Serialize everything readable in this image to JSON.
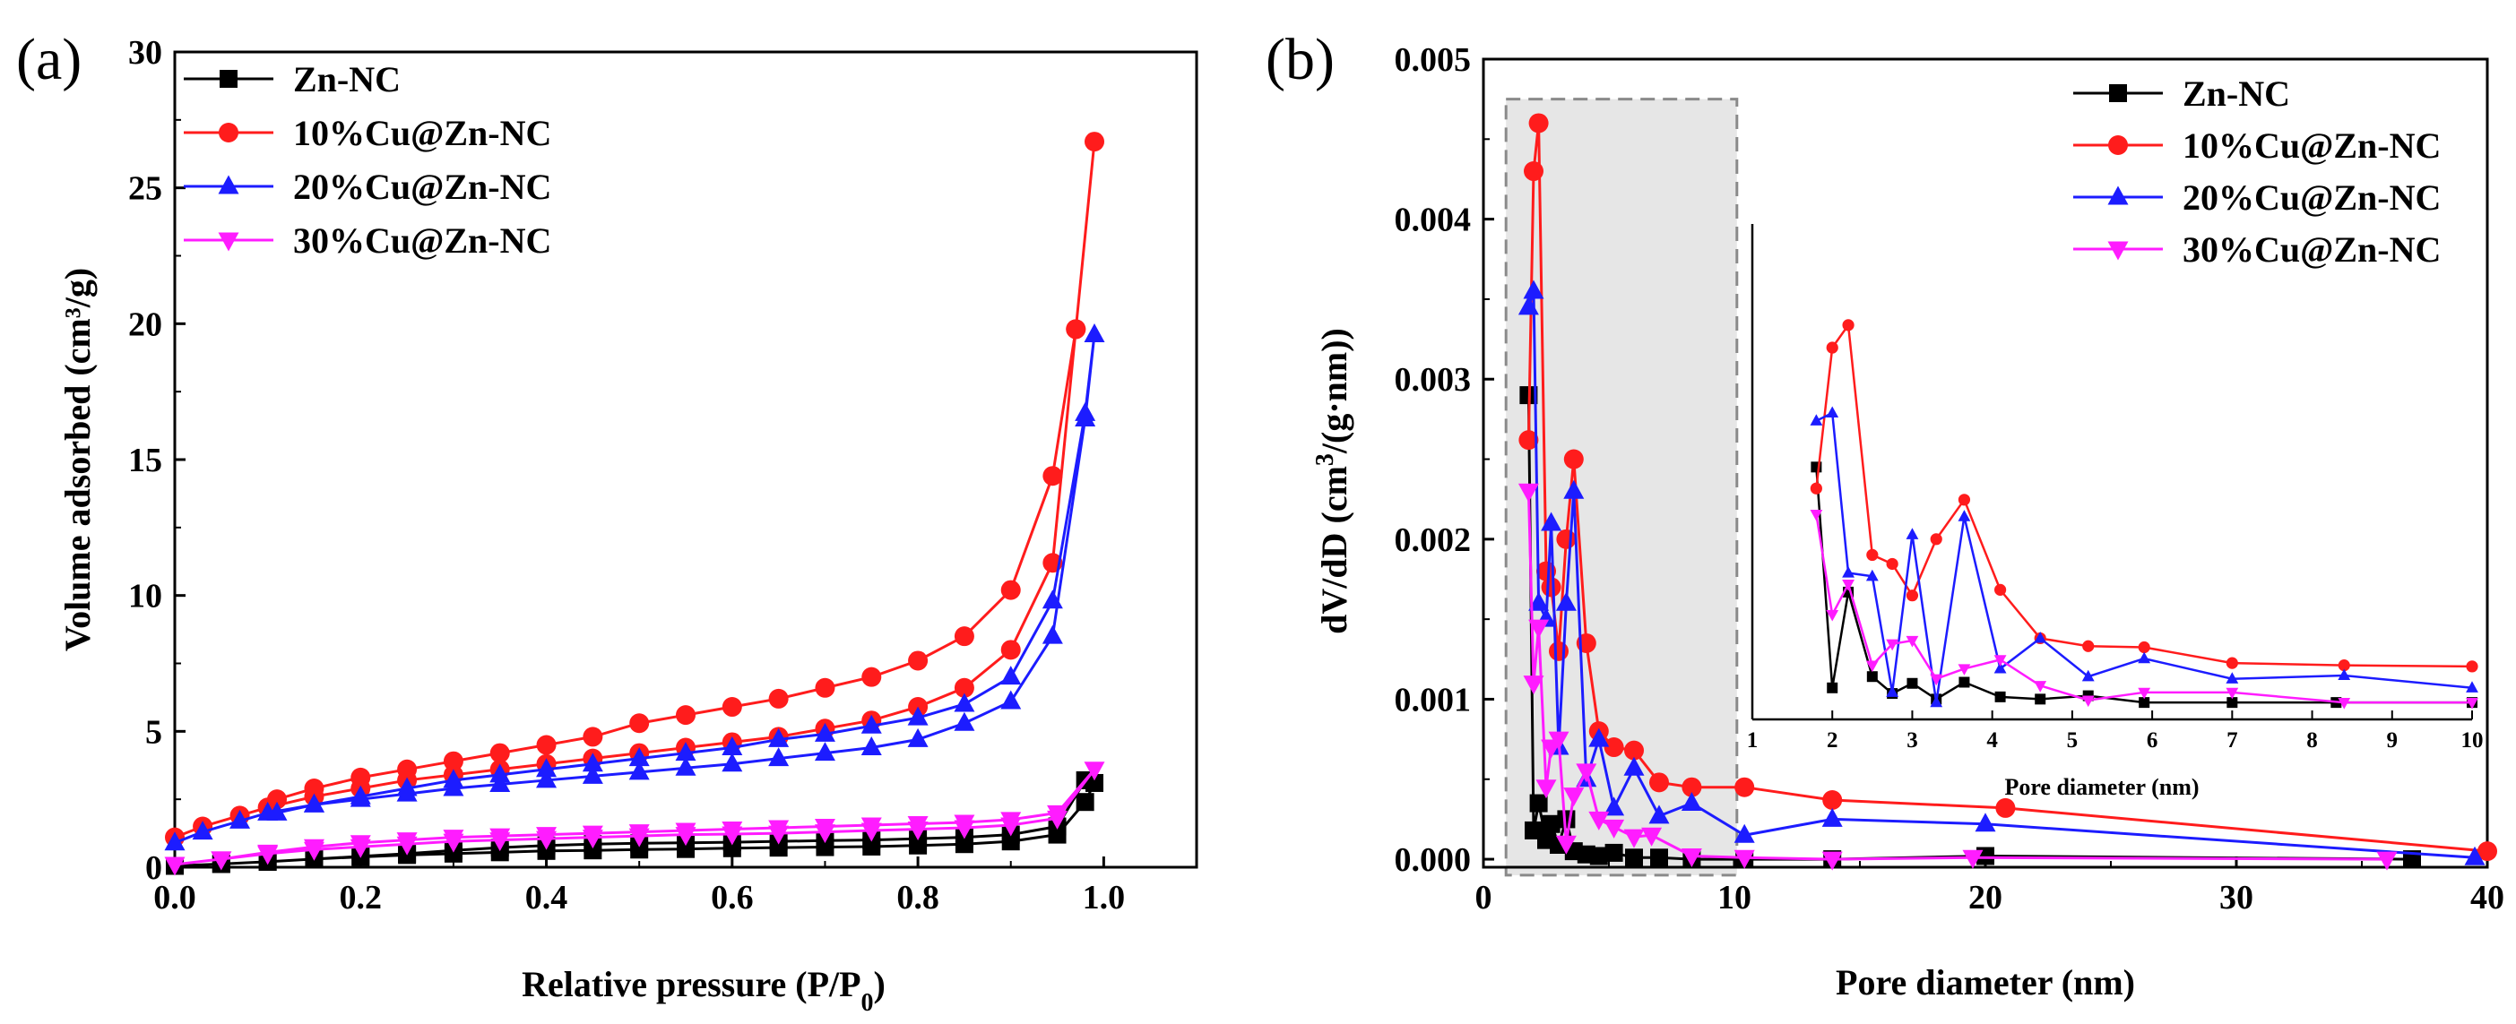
{
  "figure_labels": {
    "a": "(a)",
    "b": "(b)"
  },
  "chart_data": [
    {
      "id": "a",
      "type": "line",
      "title": "",
      "xlabel": "Relative pressure (P/P",
      "xlabel_sub": "0",
      "xlabel_end": ")",
      "ylabel": "Volume adsorbed (cm³/g)",
      "xlim": [
        0,
        1.1
      ],
      "ylim": [
        0,
        30
      ],
      "xticks": [
        0.0,
        0.2,
        0.4,
        0.6,
        0.8,
        1.0
      ],
      "xtick_labels": [
        "0.0",
        "0.2",
        "0.4",
        "0.6",
        "0.8",
        "1.0"
      ],
      "yticks": [
        0,
        5,
        10,
        15,
        20,
        25,
        30
      ],
      "ytick_labels": [
        "0",
        "5",
        "10",
        "15",
        "20",
        "25",
        "30"
      ],
      "legend": "top-left",
      "series": [
        {
          "name": "Zn-NC",
          "color": "#000000",
          "marker": "square",
          "x": [
            0.0,
            0.05,
            0.1,
            0.15,
            0.2,
            0.25,
            0.3,
            0.35,
            0.4,
            0.45,
            0.5,
            0.55,
            0.6,
            0.65,
            0.7,
            0.75,
            0.8,
            0.85,
            0.9,
            0.95,
            0.98,
            0.99,
            0.98,
            0.95,
            0.9,
            0.85,
            0.8,
            0.75,
            0.7,
            0.65,
            0.6,
            0.55,
            0.5,
            0.45,
            0.4,
            0.35,
            0.3,
            0.25,
            0.2,
            0.15,
            0.1,
            0.05
          ],
          "y": [
            0.05,
            0.12,
            0.2,
            0.3,
            0.38,
            0.45,
            0.5,
            0.55,
            0.6,
            0.62,
            0.65,
            0.67,
            0.7,
            0.72,
            0.74,
            0.76,
            0.8,
            0.85,
            0.95,
            1.2,
            2.4,
            3.1,
            3.2,
            1.5,
            1.2,
            1.1,
            1.05,
            1.0,
            0.98,
            0.95,
            0.92,
            0.9,
            0.88,
            0.85,
            0.8,
            0.72,
            0.62,
            0.5,
            0.4,
            0.3,
            0.2,
            0.12
          ]
        },
        {
          "name": "10%Cu@Zn-NC",
          "color": "#ff1c1c",
          "marker": "circle",
          "x": [
            0.0,
            0.03,
            0.07,
            0.1,
            0.15,
            0.2,
            0.25,
            0.3,
            0.35,
            0.4,
            0.45,
            0.5,
            0.55,
            0.6,
            0.65,
            0.7,
            0.75,
            0.8,
            0.85,
            0.9,
            0.945,
            0.97,
            0.99,
            0.97,
            0.945,
            0.9,
            0.85,
            0.8,
            0.75,
            0.7,
            0.65,
            0.6,
            0.55,
            0.5,
            0.45,
            0.4,
            0.35,
            0.3,
            0.25,
            0.2,
            0.15,
            0.11
          ],
          "y": [
            1.1,
            1.5,
            1.9,
            2.2,
            2.6,
            2.9,
            3.2,
            3.4,
            3.6,
            3.8,
            4.0,
            4.2,
            4.4,
            4.6,
            4.8,
            5.1,
            5.4,
            5.9,
            6.6,
            8.0,
            11.2,
            19.8,
            26.7,
            19.8,
            14.4,
            10.2,
            8.5,
            7.6,
            7.0,
            6.6,
            6.2,
            5.9,
            5.6,
            5.3,
            4.8,
            4.5,
            4.2,
            3.9,
            3.6,
            3.3,
            2.9,
            2.5
          ]
        },
        {
          "name": "20%Cu@Zn-NC",
          "color": "#1c1cff",
          "marker": "triangle-up",
          "x": [
            0.0,
            0.03,
            0.07,
            0.1,
            0.15,
            0.2,
            0.25,
            0.3,
            0.35,
            0.4,
            0.45,
            0.5,
            0.55,
            0.6,
            0.65,
            0.7,
            0.75,
            0.8,
            0.85,
            0.9,
            0.945,
            0.98,
            0.99,
            0.98,
            0.945,
            0.9,
            0.85,
            0.8,
            0.75,
            0.7,
            0.65,
            0.6,
            0.55,
            0.5,
            0.45,
            0.4,
            0.35,
            0.3,
            0.25,
            0.2,
            0.15,
            0.11
          ],
          "y": [
            0.9,
            1.3,
            1.7,
            2.0,
            2.3,
            2.5,
            2.7,
            2.9,
            3.05,
            3.2,
            3.35,
            3.5,
            3.65,
            3.8,
            4.0,
            4.2,
            4.4,
            4.7,
            5.3,
            6.1,
            8.5,
            16.5,
            19.6,
            16.7,
            9.8,
            7.0,
            6.0,
            5.5,
            5.2,
            4.9,
            4.7,
            4.4,
            4.2,
            4.0,
            3.8,
            3.6,
            3.4,
            3.2,
            2.9,
            2.6,
            2.3,
            2.0
          ]
        },
        {
          "name": "30%Cu@Zn-NC",
          "color": "#ff1cff",
          "marker": "triangle-down",
          "x": [
            0.0,
            0.05,
            0.1,
            0.15,
            0.2,
            0.25,
            0.3,
            0.35,
            0.4,
            0.45,
            0.5,
            0.55,
            0.6,
            0.65,
            0.7,
            0.75,
            0.8,
            0.85,
            0.9,
            0.95,
            0.99,
            0.95,
            0.9,
            0.85,
            0.8,
            0.75,
            0.7,
            0.65,
            0.6,
            0.55,
            0.5,
            0.45,
            0.4,
            0.35,
            0.3,
            0.25,
            0.2,
            0.15,
            0.1,
            0.05
          ],
          "y": [
            0.1,
            0.3,
            0.5,
            0.65,
            0.75,
            0.85,
            0.95,
            1.0,
            1.05,
            1.1,
            1.15,
            1.2,
            1.22,
            1.25,
            1.3,
            1.35,
            1.4,
            1.45,
            1.55,
            1.8,
            3.6,
            2.0,
            1.75,
            1.65,
            1.6,
            1.55,
            1.5,
            1.45,
            1.4,
            1.35,
            1.3,
            1.25,
            1.2,
            1.15,
            1.1,
            1.0,
            0.9,
            0.75,
            0.55,
            0.3
          ]
        }
      ]
    },
    {
      "id": "b",
      "type": "line",
      "title": "",
      "xlabel": "Pore diameter (nm)",
      "ylabel": "dV/dD (cm",
      "ylabel_sup": "3",
      "ylabel_end": "/(g·nm))",
      "xlim": [
        0,
        40
      ],
      "ylim": [
        -5e-05,
        0.005
      ],
      "xticks": [
        0,
        10,
        20,
        30,
        40
      ],
      "xtick_labels": [
        "0",
        "10",
        "20",
        "30",
        "40"
      ],
      "yticks": [
        0.0,
        0.001,
        0.002,
        0.003,
        0.004,
        0.005
      ],
      "ytick_labels": [
        "0.000",
        "0.001",
        "0.002",
        "0.003",
        "0.004",
        "0.005"
      ],
      "legend": "top-right",
      "highlight_region": {
        "x": [
          0.9,
          10.1
        ],
        "y": [
          -0.0001,
          0.00475
        ]
      },
      "series": [
        {
          "name": "Zn-NC",
          "color": "#000000",
          "marker": "square",
          "x": [
            1.8,
            2.0,
            2.2,
            2.5,
            2.7,
            3.0,
            3.3,
            3.6,
            4.1,
            4.6,
            5.2,
            6.0,
            7.0,
            8.3,
            10.4,
            13.9,
            20.0,
            37.0
          ],
          "y": [
            0.0029,
            0.00018,
            0.00035,
            0.00012,
            0.00022,
            9e-05,
            0.00025,
            5e-05,
            3e-05,
            2e-05,
            4e-05,
            1e-05,
            1e-05,
            0.0,
            0.0,
            0.0,
            2e-05,
            0.0
          ]
        },
        {
          "name": "10%Cu@Zn-NC",
          "color": "#ff1c1c",
          "marker": "circle",
          "x": [
            1.8,
            2.0,
            2.2,
            2.5,
            2.7,
            3.0,
            3.3,
            3.6,
            4.1,
            4.6,
            5.2,
            6.0,
            7.0,
            8.3,
            10.4,
            13.9,
            20.8,
            40.0
          ],
          "y": [
            0.00262,
            0.0043,
            0.0046,
            0.0018,
            0.0017,
            0.0013,
            0.002,
            0.0025,
            0.00135,
            0.0008,
            0.0007,
            0.00068,
            0.00048,
            0.00045,
            0.00045,
            0.00037,
            0.00032,
            5e-05
          ]
        },
        {
          "name": "20%Cu@Zn-NC",
          "color": "#1c1cff",
          "marker": "triangle-up",
          "x": [
            1.8,
            2.0,
            2.2,
            2.5,
            2.7,
            3.0,
            3.3,
            3.6,
            4.1,
            4.6,
            5.2,
            6.0,
            7.0,
            8.3,
            10.4,
            13.9,
            20.0,
            39.5
          ],
          "y": [
            0.00345,
            0.00355,
            0.0016,
            0.0015,
            0.0021,
            0.0007,
            0.0016,
            0.0023,
            0.0005,
            0.00075,
            0.00032,
            0.00057,
            0.00027,
            0.00035,
            0.00015,
            0.00025,
            0.00022,
            1e-05
          ]
        },
        {
          "name": "30%Cu@Zn-NC",
          "color": "#ff1cff",
          "marker": "triangle-down",
          "x": [
            1.8,
            2.0,
            2.2,
            2.5,
            2.7,
            3.0,
            3.3,
            3.6,
            4.1,
            4.6,
            5.2,
            6.0,
            6.7,
            8.3,
            10.4,
            13.9,
            19.5,
            36.0
          ],
          "y": [
            0.0023,
            0.0011,
            0.00145,
            0.00045,
            0.0007,
            0.00075,
            0.0001,
            0.0004,
            0.00055,
            0.00025,
            0.0002,
            0.00014,
            0.00015,
            2e-05,
            1e-05,
            0.0,
            1e-05,
            0.0
          ]
        }
      ]
    },
    {
      "id": "b-inset",
      "type": "line",
      "title": "",
      "xlabel": "Pore diameter (nm)",
      "xlim": [
        1,
        10
      ],
      "ylim": [
        0.0008,
        0.0048
      ],
      "xticks": [
        1,
        2,
        3,
        4,
        5,
        6,
        7,
        8,
        9,
        10
      ],
      "xtick_labels": [
        "1",
        "2",
        "3",
        "4",
        "5",
        "6",
        "7",
        "8",
        "9",
        "10"
      ],
      "series": [
        {
          "name": "Zn-NC",
          "color": "#000000",
          "marker": "square",
          "x": [
            1.8,
            2.0,
            2.2,
            2.5,
            2.75,
            3.0,
            3.3,
            3.65,
            4.1,
            4.6,
            5.2,
            5.9,
            7.0,
            8.3,
            10.0
          ],
          "y": [
            0.00304,
            0.00108,
            0.00193,
            0.00118,
            0.00103,
            0.00112,
            0.00098,
            0.00113,
            0.001,
            0.00098,
            0.00101,
            0.00095,
            0.00095,
            0.00095,
            0.00095
          ]
        },
        {
          "name": "10%Cu@Zn-NC",
          "color": "#ff1c1c",
          "marker": "circle",
          "x": [
            1.8,
            2.0,
            2.2,
            2.5,
            2.75,
            3.0,
            3.3,
            3.65,
            4.1,
            4.6,
            5.2,
            5.9,
            7.0,
            8.4,
            10.0
          ],
          "y": [
            0.00285,
            0.0041,
            0.0043,
            0.00226,
            0.00218,
            0.0019,
            0.0024,
            0.00275,
            0.00195,
            0.00152,
            0.00145,
            0.00144,
            0.0013,
            0.00128,
            0.00127
          ]
        },
        {
          "name": "20%Cu@Zn-NC",
          "color": "#1c1cff",
          "marker": "triangle-up",
          "x": [
            1.8,
            2.0,
            2.2,
            2.5,
            2.75,
            3.0,
            3.3,
            3.65,
            4.1,
            4.6,
            5.2,
            5.9,
            7.0,
            8.4,
            10.0
          ],
          "y": [
            0.00345,
            0.00352,
            0.0021,
            0.00207,
            0.00104,
            0.00244,
            0.00095,
            0.0026,
            0.00125,
            0.00152,
            0.00118,
            0.00134,
            0.00116,
            0.00119,
            0.00108
          ]
        },
        {
          "name": "30%Cu@Zn-NC",
          "color": "#ff1cff",
          "marker": "triangle-down",
          "x": [
            1.8,
            2.0,
            2.2,
            2.5,
            2.75,
            3.0,
            3.3,
            3.65,
            4.1,
            4.6,
            5.2,
            5.9,
            7.0,
            8.4,
            10.0
          ],
          "y": [
            0.00262,
            0.00173,
            0.002,
            0.00128,
            0.00147,
            0.0015,
            0.00116,
            0.00125,
            0.00133,
            0.0011,
            0.00097,
            0.00104,
            0.00104,
            0.00095,
            0.00095
          ]
        }
      ]
    }
  ]
}
